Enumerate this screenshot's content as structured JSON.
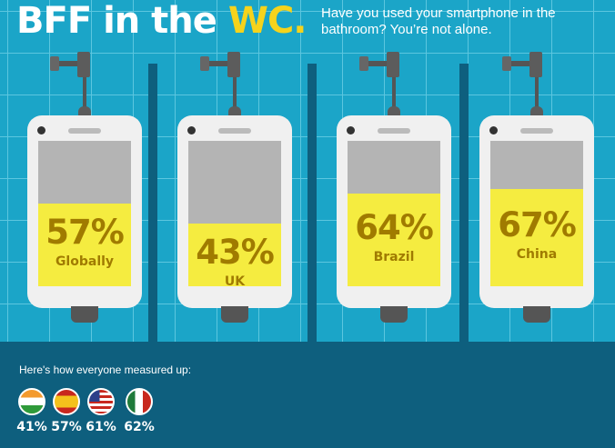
{
  "header": {
    "title_main": "BFF in the ",
    "title_accent": "WC.",
    "subtitle": "Have you used your smartphone in the bathroom? You’re not alone."
  },
  "colors": {
    "wall": "#1ba5c8",
    "floor": "#0e5f7e",
    "fill": "#f5ec40",
    "text": "#a07b00",
    "accent": "#f6d31c"
  },
  "chart_data": {
    "type": "bar",
    "categories": [
      "Globally",
      "UK",
      "Brazil",
      "China"
    ],
    "values": [
      57,
      43,
      64,
      67
    ],
    "labels": [
      "57%",
      "43%",
      "64%",
      "67%"
    ],
    "ylim": [
      0,
      100
    ]
  },
  "footer": {
    "heading": "Here's how everyone measured up:",
    "countries": [
      {
        "flag": "india-flag-icon",
        "value": "41%"
      },
      {
        "flag": "spain-flag-icon",
        "value": "57%"
      },
      {
        "flag": "usa-flag-icon",
        "value": "61%"
      },
      {
        "flag": "mexico-flag-icon",
        "value": "62%"
      }
    ]
  }
}
